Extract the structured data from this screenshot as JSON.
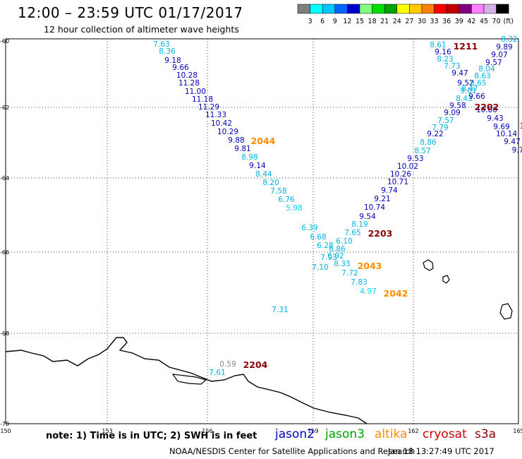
{
  "header": {
    "title": "12:00 – 23:59 UTC 01/17/2017",
    "subtitle": "12 hour collection of altimeter wave heights"
  },
  "colorbar": {
    "unit_label": "(ft)",
    "ticks": [
      "3",
      "6",
      "9",
      "12",
      "15",
      "18",
      "21",
      "24",
      "27",
      "30",
      "33",
      "36",
      "39",
      "42",
      "45",
      "70"
    ],
    "colors": [
      "#7f7f7f",
      "#00ffff",
      "#00c8ff",
      "#0064ff",
      "#0000c8",
      "#80ff80",
      "#00e000",
      "#00a000",
      "#ffff00",
      "#ffc800",
      "#ff8000",
      "#ff0000",
      "#c00000",
      "#800080",
      "#ff80ff",
      "#d8b0e8",
      "#000000"
    ]
  },
  "map": {
    "lon_range": [
      150,
      165
    ],
    "lat_range": [
      -70,
      -60
    ],
    "lon_ticks": [
      "150",
      "153",
      "156",
      "159",
      "162",
      "165"
    ],
    "lat_ticks": [
      "-60",
      "-62",
      "-64",
      "-66",
      "-68",
      "-70"
    ],
    "grid": "dotted"
  },
  "tracks": [
    {
      "label": "2044",
      "color": "#ff8c00"
    },
    {
      "label": "2203",
      "color": "#8b0000"
    },
    {
      "label": "2043",
      "color": "#ff8c00"
    },
    {
      "label": "2042",
      "color": "#ff8c00"
    },
    {
      "label": "2204",
      "color": "#8b0000"
    },
    {
      "label": "1211",
      "color": "#8b0000"
    },
    {
      "label": "2202",
      "color": "#8b0000"
    }
  ],
  "swh_values": [
    {
      "v": "7.63",
      "c": "#00b4e6"
    },
    {
      "v": "8.36",
      "c": "#00b4e6"
    },
    {
      "v": "9.18",
      "c": "#0000b4"
    },
    {
      "v": "9.66",
      "c": "#0000b4"
    },
    {
      "v": "10.28",
      "c": "#0000b4"
    },
    {
      "v": "11.28",
      "c": "#0000b4"
    },
    {
      "v": "11.00",
      "c": "#0000b4"
    },
    {
      "v": "11.18",
      "c": "#0000b4"
    },
    {
      "v": "11.29",
      "c": "#0000b4"
    },
    {
      "v": "11.33",
      "c": "#0000b4"
    },
    {
      "v": "10.42",
      "c": "#0000b4"
    },
    {
      "v": "10.29",
      "c": "#0000b4"
    },
    {
      "v": "9.88",
      "c": "#0000b4"
    },
    {
      "v": "9.81",
      "c": "#0000b4"
    },
    {
      "v": "8.98",
      "c": "#00b4e6"
    },
    {
      "v": "9.14",
      "c": "#0000b4"
    },
    {
      "v": "8.44",
      "c": "#00b4e6"
    },
    {
      "v": "8.20",
      "c": "#00b4e6"
    },
    {
      "v": "7.58",
      "c": "#00b4e6"
    },
    {
      "v": "6.76",
      "c": "#00b4e6"
    },
    {
      "v": "5.98",
      "c": "#00d8f0"
    },
    {
      "v": "6.39",
      "c": "#00b4e6"
    },
    {
      "v": "6.68",
      "c": "#00b4e6"
    },
    {
      "v": "6.28",
      "c": "#00b4e6"
    },
    {
      "v": "6.10",
      "c": "#00b4e6"
    },
    {
      "v": "6.86",
      "c": "#00b4e6"
    },
    {
      "v": "6.92",
      "c": "#00b4e6"
    },
    {
      "v": "7.93",
      "c": "#00b4e6"
    },
    {
      "v": "7.10",
      "c": "#00b4e6"
    },
    {
      "v": "8.33",
      "c": "#00b4e6"
    },
    {
      "v": "7.72",
      "c": "#00b4e6"
    },
    {
      "v": "7.83",
      "c": "#00b4e6"
    },
    {
      "v": "4.97",
      "c": "#00d8f0"
    },
    {
      "v": "7.31",
      "c": "#00b4e6"
    },
    {
      "v": "0.59",
      "c": "#888888"
    },
    {
      "v": "7.61",
      "c": "#00b4e6"
    },
    {
      "v": "7.65",
      "c": "#00b4e6"
    },
    {
      "v": "8.19",
      "c": "#00b4e6"
    },
    {
      "v": "9.54",
      "c": "#0000b4"
    },
    {
      "v": "10.74",
      "c": "#0000b4"
    },
    {
      "v": "9.21",
      "c": "#0000b4"
    },
    {
      "v": "9.74",
      "c": "#0000b4"
    },
    {
      "v": "10.71",
      "c": "#0000b4"
    },
    {
      "v": "10.26",
      "c": "#0000b4"
    },
    {
      "v": "10.02",
      "c": "#0000b4"
    },
    {
      "v": "9.53",
      "c": "#0000b4"
    },
    {
      "v": "8.57",
      "c": "#00b4e6"
    },
    {
      "v": "8.86",
      "c": "#00b4e6"
    },
    {
      "v": "9.22",
      "c": "#0000b4"
    },
    {
      "v": "7.79",
      "c": "#00b4e6"
    },
    {
      "v": "7.57",
      "c": "#00b4e6"
    },
    {
      "v": "9.09",
      "c": "#0000b4"
    },
    {
      "v": "9.58",
      "c": "#0000b4"
    },
    {
      "v": "8.43",
      "c": "#00b4e6"
    },
    {
      "v": "9.01",
      "c": "#00b4e6"
    },
    {
      "v": "9.52",
      "c": "#0000b4"
    },
    {
      "v": "9.47",
      "c": "#0000b4"
    },
    {
      "v": "7.73",
      "c": "#00b4e6"
    },
    {
      "v": "8.23",
      "c": "#00b4e6"
    },
    {
      "v": "9.16",
      "c": "#0000b4"
    },
    {
      "v": "8.61",
      "c": "#00b4e6"
    },
    {
      "v": "8.32",
      "c": "#00b4e6"
    },
    {
      "v": "9.89",
      "c": "#0000b4"
    },
    {
      "v": "9.07",
      "c": "#0000b4"
    },
    {
      "v": "9.57",
      "c": "#0000b4"
    },
    {
      "v": "8.04",
      "c": "#00b4e6"
    },
    {
      "v": "8.63",
      "c": "#00b4e6"
    },
    {
      "v": "8.65",
      "c": "#00b4e6"
    },
    {
      "v": "8.47",
      "c": "#00b4e6"
    },
    {
      "v": "9.66",
      "c": "#0000b4"
    },
    {
      "v": "10.80",
      "c": "#0000b4"
    },
    {
      "v": "9.43",
      "c": "#0000b4"
    },
    {
      "v": "9.69",
      "c": "#0000b4"
    },
    {
      "v": "10.14",
      "c": "#0000b4"
    },
    {
      "v": "9.47",
      "c": "#0000b4"
    },
    {
      "v": "9.7",
      "c": "#0000b4"
    },
    {
      "v": "1",
      "c": "#8b0000"
    }
  ],
  "footer": {
    "note": "note: 1) Time is in UTC; 2) SWH is in feet",
    "legend": [
      {
        "name": "jason2",
        "color": "#0000cc"
      },
      {
        "name": "jason3",
        "color": "#00a000"
      },
      {
        "name": "altika",
        "color": "#ff8c00"
      },
      {
        "name": "cryosat",
        "color": "#cc0000"
      },
      {
        "name": "s3a",
        "color": "#8b0000"
      }
    ],
    "credit": "NOAA/NESDIS Center for Satellite Applications and Research",
    "timestamp": "Jan 18 13:27:49 UTC 2017"
  }
}
